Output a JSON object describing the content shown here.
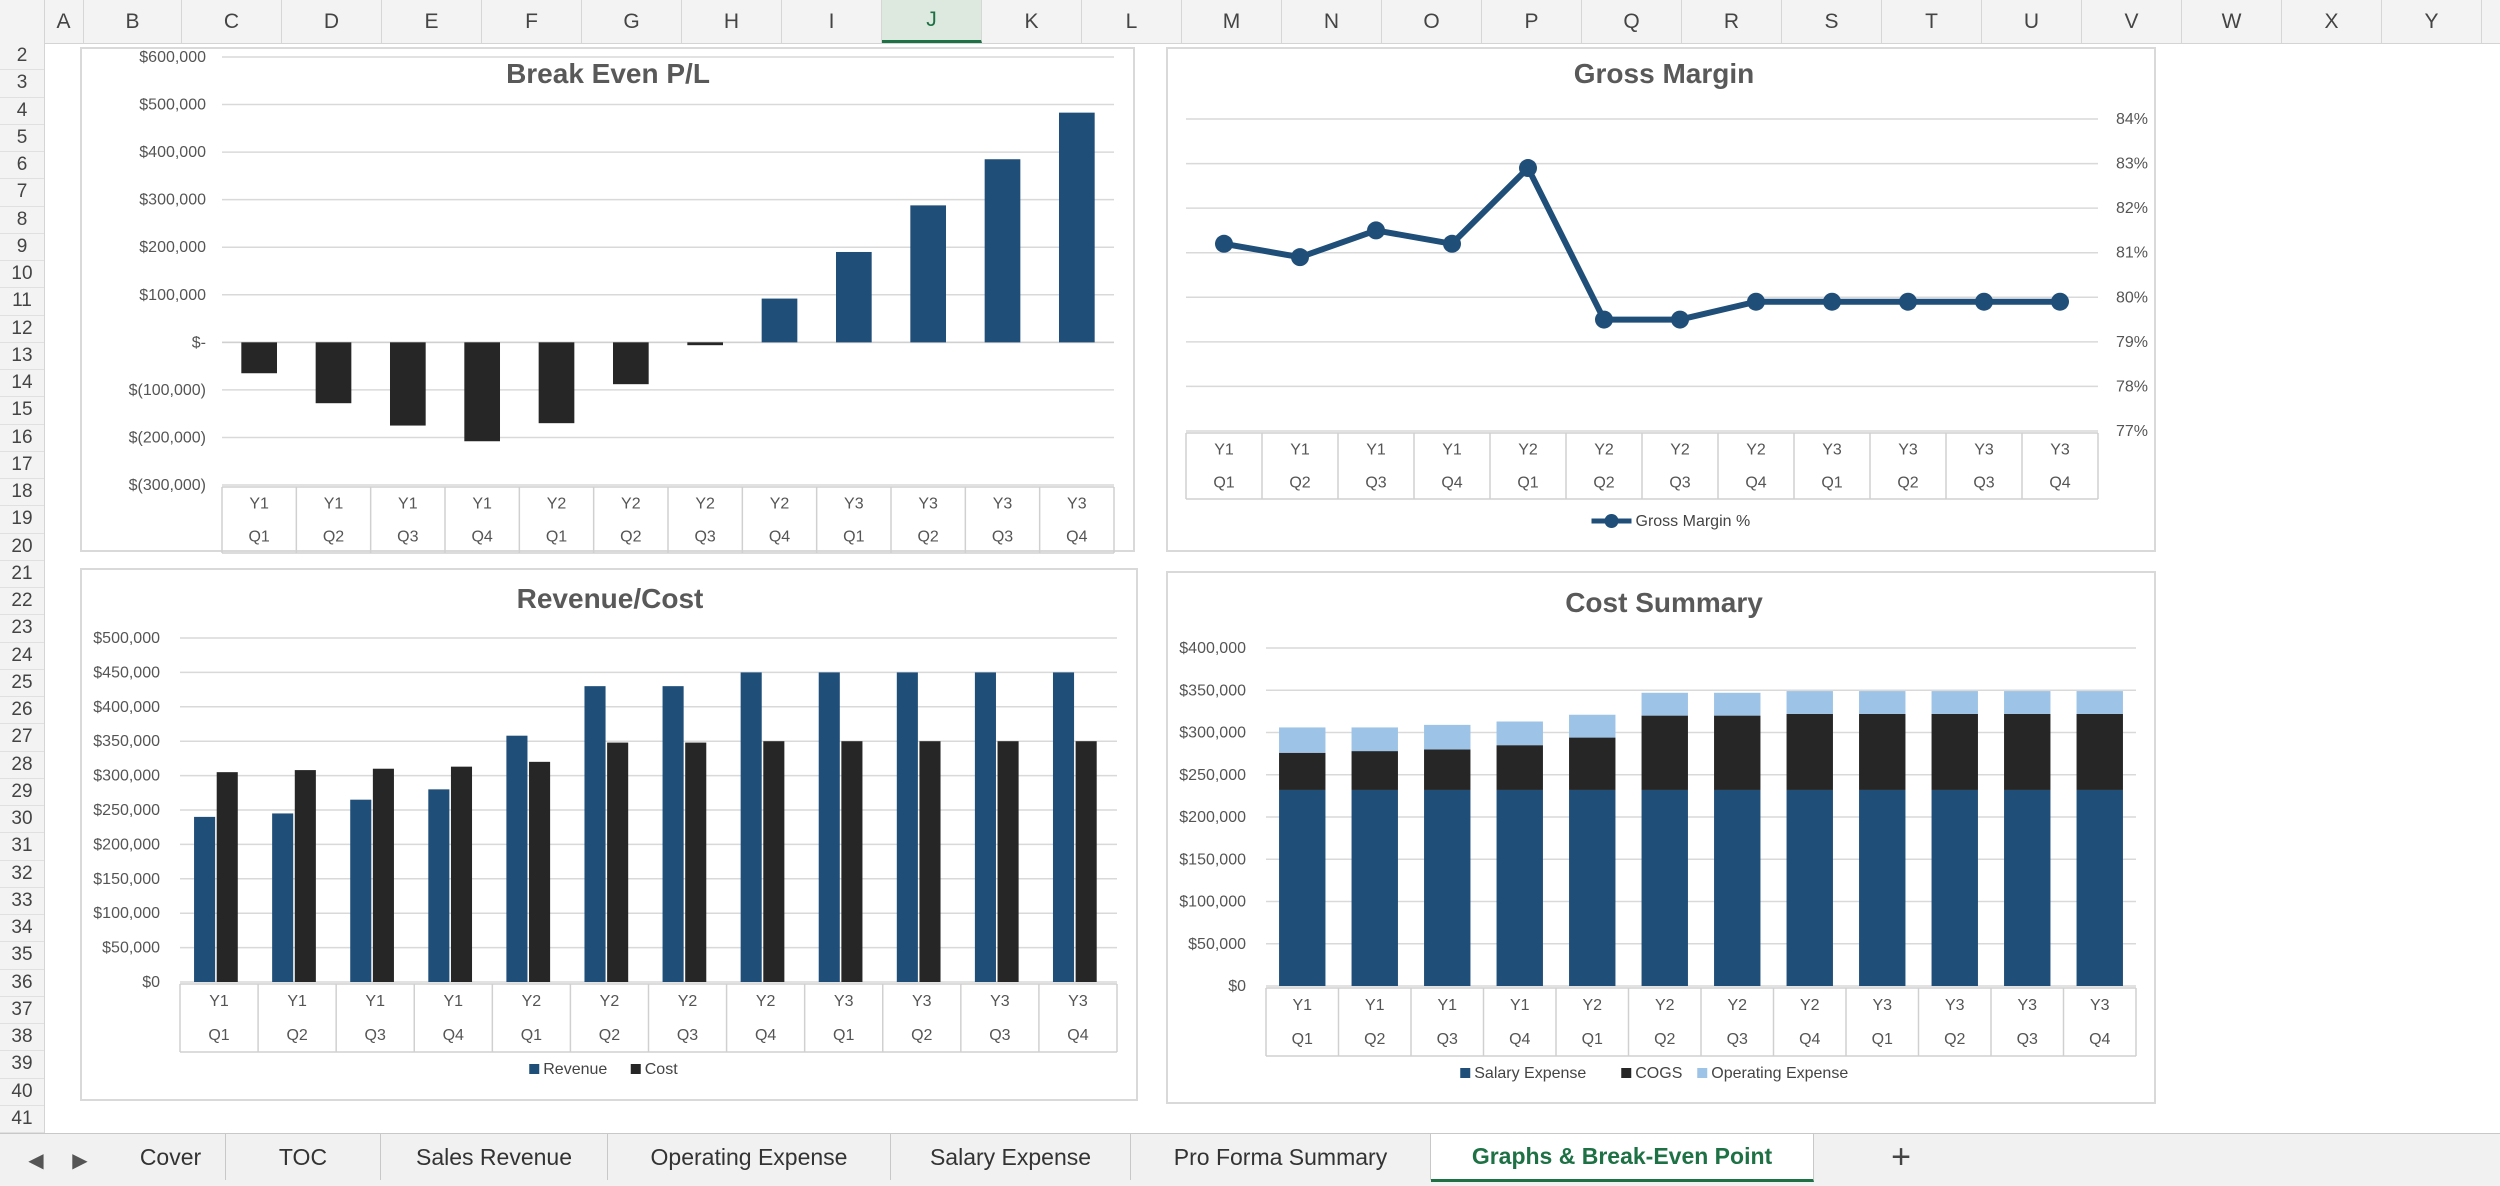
{
  "spreadsheet": {
    "columns": [
      "A",
      "B",
      "C",
      "D",
      "E",
      "F",
      "G",
      "H",
      "I",
      "J",
      "K",
      "L",
      "M",
      "N",
      "O",
      "P",
      "Q",
      "R",
      "S",
      "T",
      "U",
      "V",
      "W",
      "X",
      "Y"
    ],
    "active_column": "J",
    "rows": [
      "2",
      "3",
      "4",
      "5",
      "6",
      "7",
      "8",
      "9",
      "10",
      "11",
      "12",
      "13",
      "14",
      "15",
      "16",
      "17",
      "18",
      "19",
      "20",
      "21",
      "22",
      "23",
      "24",
      "25",
      "26",
      "27",
      "28",
      "29",
      "30",
      "31",
      "32",
      "33",
      "34",
      "35",
      "36",
      "37",
      "38",
      "39",
      "40",
      "41"
    ]
  },
  "sheet_tabs": {
    "tabs": [
      "Cover",
      "TOC",
      "Sales Revenue",
      "Operating Expense",
      "Salary Expense",
      "Pro Forma Summary",
      "Graphs & Break-Even Point"
    ],
    "active_tab": "Graphs & Break-Even Point",
    "add_label": "+",
    "prev_icon": "chevron-left-icon",
    "next_icon": "chevron-right-icon"
  },
  "chart_data": [
    {
      "type": "bar",
      "title": "Break Even P/L",
      "categories_top": [
        "Y1",
        "Y1",
        "Y1",
        "Y1",
        "Y2",
        "Y2",
        "Y2",
        "Y2",
        "Y3",
        "Y3",
        "Y3",
        "Y3"
      ],
      "categories_bottom": [
        "Q1",
        "Q2",
        "Q3",
        "Q4",
        "Q1",
        "Q2",
        "Q3",
        "Q4",
        "Q1",
        "Q2",
        "Q3",
        "Q4"
      ],
      "values": [
        -65000,
        -128000,
        -175000,
        -208000,
        -170000,
        -88000,
        -6000,
        92000,
        190000,
        288000,
        385000,
        483000
      ],
      "colors": [
        "#262626",
        "#262626",
        "#262626",
        "#262626",
        "#262626",
        "#262626",
        "#262626",
        "#1f4e79",
        "#1f4e79",
        "#1f4e79",
        "#1f4e79",
        "#1f4e79"
      ],
      "ylim": [
        -300000,
        600000
      ],
      "yticks": [
        "$600,000",
        "$500,000",
        "$400,000",
        "$300,000",
        "$200,000",
        "$100,000",
        "$-",
        "$(100,000)",
        "$(200,000)",
        "$(300,000)"
      ],
      "grid": true
    },
    {
      "type": "line",
      "title": "Gross Margin",
      "categories_top": [
        "Y1",
        "Y1",
        "Y1",
        "Y1",
        "Y2",
        "Y2",
        "Y2",
        "Y2",
        "Y3",
        "Y3",
        "Y3",
        "Y3"
      ],
      "categories_bottom": [
        "Q1",
        "Q2",
        "Q3",
        "Q4",
        "Q1",
        "Q2",
        "Q3",
        "Q4",
        "Q1",
        "Q2",
        "Q3",
        "Q4"
      ],
      "series": [
        {
          "name": "Gross Margin %",
          "values": [
            81.2,
            80.9,
            81.5,
            81.2,
            82.9,
            79.5,
            79.5,
            79.9,
            79.9,
            79.9,
            79.9,
            79.9
          ],
          "color": "#1f4e79"
        }
      ],
      "ylim": [
        77,
        84
      ],
      "yticks": [
        "84%",
        "83%",
        "82%",
        "81%",
        "80%",
        "79%",
        "78%",
        "77%"
      ],
      "y_axis_side": "right",
      "legend": "bottom",
      "grid": true
    },
    {
      "type": "bar",
      "title": "Revenue/Cost",
      "categories_top": [
        "Y1",
        "Y1",
        "Y1",
        "Y1",
        "Y2",
        "Y2",
        "Y2",
        "Y2",
        "Y3",
        "Y3",
        "Y3",
        "Y3"
      ],
      "categories_bottom": [
        "Q1",
        "Q2",
        "Q3",
        "Q4",
        "Q1",
        "Q2",
        "Q3",
        "Q4",
        "Q1",
        "Q2",
        "Q3",
        "Q4"
      ],
      "series": [
        {
          "name": "Revenue",
          "values": [
            240000,
            245000,
            265000,
            280000,
            358000,
            430000,
            430000,
            450000,
            450000,
            450000,
            450000,
            450000
          ],
          "color": "#1f4e79"
        },
        {
          "name": "Cost",
          "values": [
            305000,
            308000,
            310000,
            313000,
            320000,
            348000,
            348000,
            350000,
            350000,
            350000,
            350000,
            350000
          ],
          "color": "#262626"
        }
      ],
      "ylim": [
        0,
        500000
      ],
      "yticks": [
        "$500,000",
        "$450,000",
        "$400,000",
        "$350,000",
        "$300,000",
        "$250,000",
        "$200,000",
        "$150,000",
        "$100,000",
        "$50,000",
        "$0"
      ],
      "legend": "bottom",
      "grid": true
    },
    {
      "type": "bar",
      "stacked": true,
      "title": "Cost Summary",
      "categories_top": [
        "Y1",
        "Y1",
        "Y1",
        "Y1",
        "Y2",
        "Y2",
        "Y2",
        "Y2",
        "Y3",
        "Y3",
        "Y3",
        "Y3"
      ],
      "categories_bottom": [
        "Q1",
        "Q2",
        "Q3",
        "Q4",
        "Q1",
        "Q2",
        "Q3",
        "Q4",
        "Q1",
        "Q2",
        "Q3",
        "Q4"
      ],
      "series": [
        {
          "name": "Salary Expense",
          "values": [
            232000,
            232000,
            232000,
            232000,
            232000,
            232000,
            232000,
            232000,
            232000,
            232000,
            232000,
            232000
          ],
          "color": "#1f4e79"
        },
        {
          "name": "COGS",
          "values": [
            44000,
            46000,
            48000,
            53000,
            62000,
            88000,
            88000,
            90000,
            90000,
            90000,
            90000,
            90000
          ],
          "color": "#262626"
        },
        {
          "name": "Operating Expense",
          "values": [
            30000,
            28000,
            29000,
            28000,
            27000,
            27000,
            27000,
            27000,
            27000,
            27000,
            27000,
            27000
          ],
          "color": "#9dc3e6"
        }
      ],
      "ylim": [
        0,
        400000
      ],
      "yticks": [
        "$400,000",
        "$350,000",
        "$300,000",
        "$250,000",
        "$200,000",
        "$150,000",
        "$100,000",
        "$50,000",
        "$0"
      ],
      "legend": "bottom",
      "grid": true
    }
  ]
}
